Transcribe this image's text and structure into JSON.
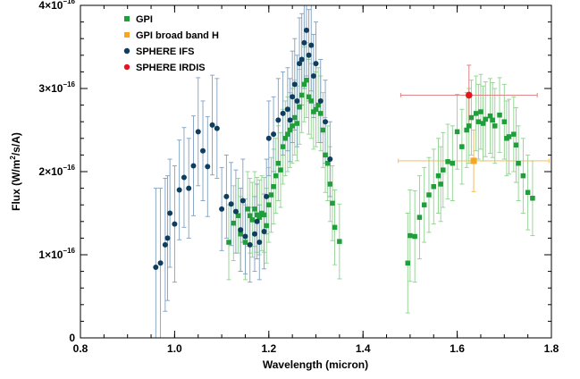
{
  "chart_data": {
    "type": "scatter",
    "xlabel": "Wavelength (micron)",
    "ylabel_parts": {
      "a": "Flux (W/m",
      "sup": "2",
      "b": "/s/A)"
    },
    "xlim": [
      0.8,
      1.8
    ],
    "ylim": [
      0,
      4.0
    ],
    "x_ticks": [
      {
        "value": 0.8,
        "label": "0.8"
      },
      {
        "value": 1.0,
        "label": "1.0"
      },
      {
        "value": 1.2,
        "label": "1.2"
      },
      {
        "value": 1.4,
        "label": "1.4"
      },
      {
        "value": 1.6,
        "label": "1.6"
      },
      {
        "value": 1.8,
        "label": "1.8"
      }
    ],
    "y_ticks": [
      {
        "value": 0,
        "mant": "0",
        "exp": ""
      },
      {
        "value": 1,
        "mant": "1×10",
        "exp": "−16"
      },
      {
        "value": 2,
        "mant": "2×10",
        "exp": "−16"
      },
      {
        "value": 3,
        "mant": "3×10",
        "exp": "−16"
      },
      {
        "value": 4,
        "mant": "4×10",
        "exp": "−16"
      }
    ],
    "y_scale_note": "flux values in units of 1e-16 W/m2/s/A",
    "legend_position": "top-left",
    "series": [
      {
        "name": "GPI",
        "color": "#1f9e3a",
        "error_color": "#8fd18f",
        "marker": "square",
        "points": [
          [
            1.115,
            1.15,
            0.45
          ],
          [
            1.125,
            1.38,
            0.45
          ],
          [
            1.135,
            1.47,
            0.45
          ],
          [
            1.14,
            1.25,
            0.45
          ],
          [
            1.15,
            1.15,
            0.45
          ],
          [
            1.155,
            1.55,
            0.45
          ],
          [
            1.16,
            1.47,
            0.45
          ],
          [
            1.165,
            1.42,
            0.45
          ],
          [
            1.17,
            1.55,
            0.45
          ],
          [
            1.175,
            1.48,
            0.45
          ],
          [
            1.18,
            1.45,
            0.45
          ],
          [
            1.185,
            1.5,
            0.45
          ],
          [
            1.19,
            1.48,
            0.45
          ],
          [
            1.195,
            1.35,
            0.45
          ],
          [
            1.2,
            1.6,
            0.45
          ],
          [
            1.205,
            1.72,
            0.45
          ],
          [
            1.21,
            1.82,
            0.45
          ],
          [
            1.215,
            1.95,
            0.45
          ],
          [
            1.22,
            2.1,
            0.45
          ],
          [
            1.225,
            2.02,
            0.45
          ],
          [
            1.23,
            2.3,
            0.45
          ],
          [
            1.235,
            2.4,
            0.45
          ],
          [
            1.24,
            2.45,
            0.45
          ],
          [
            1.245,
            2.5,
            0.45
          ],
          [
            1.25,
            2.55,
            0.45
          ],
          [
            1.255,
            2.65,
            0.45
          ],
          [
            1.26,
            2.58,
            0.45
          ],
          [
            1.265,
            2.78,
            0.45
          ],
          [
            1.27,
            2.92,
            0.45
          ],
          [
            1.275,
            3.05,
            0.45
          ],
          [
            1.28,
            3.1,
            0.45
          ],
          [
            1.285,
            2.9,
            0.45
          ],
          [
            1.29,
            2.85,
            0.45
          ],
          [
            1.295,
            2.72,
            0.45
          ],
          [
            1.3,
            2.75,
            0.45
          ],
          [
            1.305,
            2.8,
            0.45
          ],
          [
            1.31,
            2.7,
            0.45
          ],
          [
            1.315,
            2.5,
            0.45
          ],
          [
            1.32,
            2.2,
            0.45
          ],
          [
            1.325,
            2.1,
            0.45
          ],
          [
            1.33,
            1.85,
            0.45
          ],
          [
            1.335,
            1.62,
            0.45
          ],
          [
            1.34,
            1.33,
            0.45
          ],
          [
            1.35,
            1.16,
            0.45
          ],
          [
            1.495,
            0.9,
            0.6
          ],
          [
            1.5,
            1.23,
            0.55
          ],
          [
            1.51,
            1.22,
            0.55
          ],
          [
            1.52,
            1.45,
            0.5
          ],
          [
            1.53,
            1.6,
            0.45
          ],
          [
            1.54,
            1.72,
            0.45
          ],
          [
            1.55,
            1.82,
            0.45
          ],
          [
            1.56,
            1.95,
            0.45
          ],
          [
            1.565,
            1.85,
            0.45
          ],
          [
            1.57,
            2.02,
            0.45
          ],
          [
            1.58,
            2.12,
            0.45
          ],
          [
            1.59,
            2.1,
            0.45
          ],
          [
            1.6,
            2.48,
            0.45
          ],
          [
            1.61,
            2.3,
            0.45
          ],
          [
            1.62,
            2.5,
            0.45
          ],
          [
            1.625,
            2.55,
            0.45
          ],
          [
            1.63,
            2.65,
            0.45
          ],
          [
            1.64,
            2.7,
            0.45
          ],
          [
            1.645,
            2.6,
            0.45
          ],
          [
            1.65,
            2.72,
            0.45
          ],
          [
            1.655,
            2.58,
            0.45
          ],
          [
            1.66,
            2.63,
            0.45
          ],
          [
            1.67,
            2.67,
            0.45
          ],
          [
            1.675,
            2.62,
            0.45
          ],
          [
            1.68,
            2.55,
            0.45
          ],
          [
            1.69,
            2.68,
            0.45
          ],
          [
            1.7,
            2.6,
            0.45
          ],
          [
            1.705,
            2.4,
            0.45
          ],
          [
            1.71,
            2.42,
            0.45
          ],
          [
            1.72,
            2.45,
            0.45
          ],
          [
            1.725,
            2.32,
            0.45
          ],
          [
            1.73,
            2.1,
            0.45
          ],
          [
            1.74,
            1.95,
            0.45
          ],
          [
            1.75,
            1.75,
            0.45
          ],
          [
            1.76,
            1.68,
            0.45
          ]
        ]
      },
      {
        "name": "GPI broad band H",
        "color": "#f5a623",
        "error_color": "#f5b64a",
        "marker": "square",
        "points": [
          [
            1.635,
            2.13,
            0.37
          ]
        ],
        "xerr": [
          0.16
        ]
      },
      {
        "name": "SPHERE IFS",
        "color": "#0f3d5e",
        "error_color": "#7f9fc0",
        "marker": "circle",
        "points": [
          [
            0.96,
            0.85,
            0.95
          ],
          [
            0.97,
            0.9,
            0.9
          ],
          [
            0.98,
            1.12,
            0.8
          ],
          [
            0.985,
            1.2,
            0.75
          ],
          [
            0.99,
            1.5,
            0.65
          ],
          [
            1.0,
            1.37,
            0.7
          ],
          [
            1.01,
            1.78,
            0.6
          ],
          [
            1.02,
            1.93,
            0.6
          ],
          [
            1.03,
            1.8,
            0.6
          ],
          [
            1.04,
            2.07,
            0.6
          ],
          [
            1.05,
            2.48,
            0.65
          ],
          [
            1.06,
            2.25,
            0.6
          ],
          [
            1.07,
            2.06,
            0.6
          ],
          [
            1.08,
            2.56,
            0.6
          ],
          [
            1.09,
            2.52,
            0.6
          ],
          [
            1.1,
            1.55,
            0.5
          ],
          [
            1.11,
            1.7,
            0.5
          ],
          [
            1.12,
            1.61,
            0.5
          ],
          [
            1.13,
            1.52,
            0.5
          ],
          [
            1.14,
            1.3,
            0.5
          ],
          [
            1.145,
            1.65,
            0.5
          ],
          [
            1.15,
            1.22,
            0.45
          ],
          [
            1.16,
            1.12,
            0.45
          ],
          [
            1.17,
            1.25,
            0.45
          ],
          [
            1.175,
            1.4,
            0.45
          ],
          [
            1.18,
            1.15,
            0.45
          ],
          [
            1.19,
            1.28,
            0.45
          ],
          [
            1.195,
            1.7,
            0.45
          ],
          [
            1.2,
            2.4,
            0.45
          ],
          [
            1.21,
            2.45,
            0.45
          ],
          [
            1.22,
            2.62,
            0.5
          ],
          [
            1.23,
            2.7,
            0.5
          ],
          [
            1.24,
            2.75,
            0.5
          ],
          [
            1.245,
            2.62,
            0.5
          ],
          [
            1.25,
            2.9,
            0.55
          ],
          [
            1.255,
            3.05,
            0.55
          ],
          [
            1.26,
            2.85,
            0.55
          ],
          [
            1.265,
            3.3,
            0.55
          ],
          [
            1.27,
            3.35,
            0.55
          ],
          [
            1.275,
            3.55,
            0.55
          ],
          [
            1.28,
            3.7,
            0.55
          ],
          [
            1.285,
            3.4,
            0.55
          ],
          [
            1.29,
            3.52,
            0.55
          ],
          [
            1.295,
            3.15,
            0.5
          ],
          [
            1.3,
            3.3,
            0.5
          ],
          [
            1.31,
            2.85,
            0.5
          ],
          [
            1.32,
            2.6,
            0.5
          ],
          [
            1.33,
            2.15,
            0.45
          ]
        ]
      },
      {
        "name": "SPHERE IRDIS",
        "color": "#e8141b",
        "error_color": "#d9787b",
        "marker": "circle",
        "points": [
          [
            1.625,
            2.92,
            0.36
          ]
        ],
        "xerr": [
          0.145
        ]
      }
    ]
  }
}
